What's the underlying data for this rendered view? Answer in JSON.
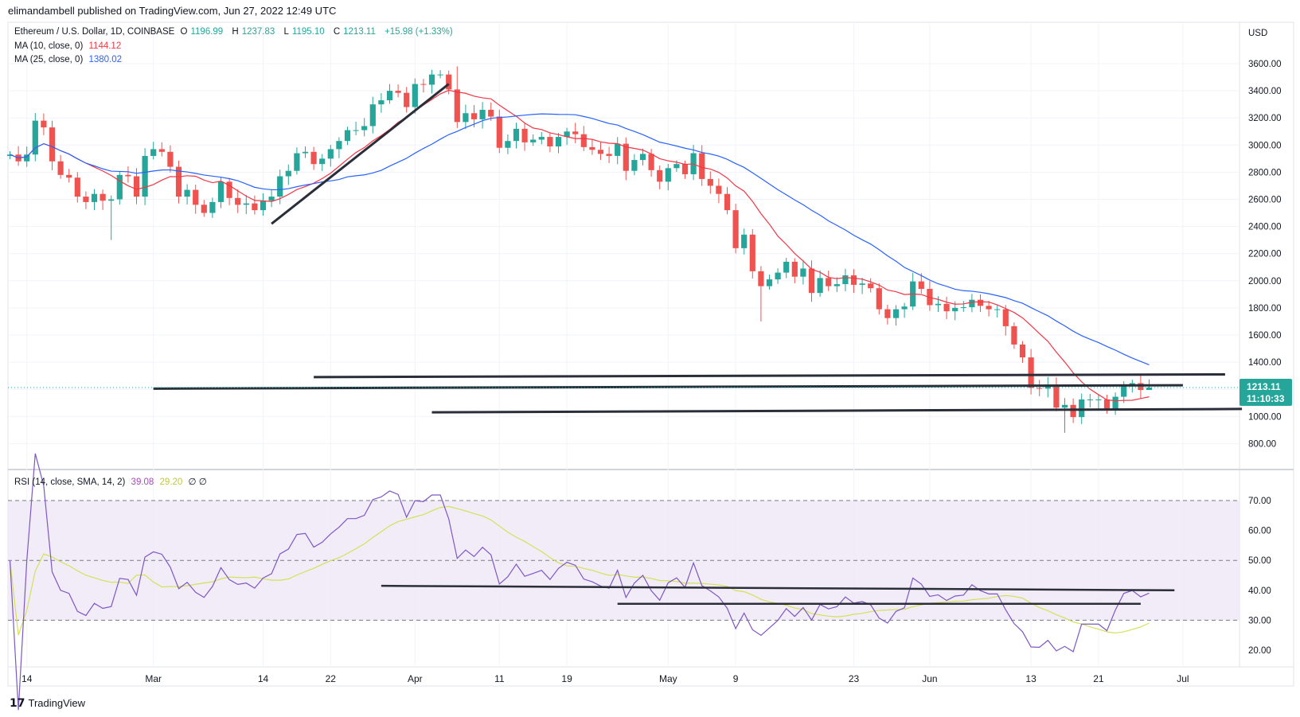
{
  "publisher_line": "elimandambell published on TradingView.com, Jun 27, 2022 12:49 UTC",
  "legend": {
    "symbol": "Ethereum / U.S. Dollar, 1D, COINBASE",
    "o_label": "O",
    "o": "1196.99",
    "h_label": "H",
    "h": "1237.83",
    "l_label": "L",
    "l": "1195.10",
    "c_label": "C",
    "c": "1213.11",
    "change": "+15.98 (+1.33%)",
    "ma10_label": "MA (10, close, 0)",
    "ma10_value": "1144.12",
    "ma25_label": "MA (25, close, 0)",
    "ma25_value": "1380.02",
    "rsi_label": "RSI (14, close, SMA, 14, 2)",
    "rsi_value": "39.08",
    "rsi_sma_value": "29.20",
    "rsi_extra": "∅ ∅"
  },
  "price_axis": {
    "currency": "USD",
    "ticks": [
      "3600.00",
      "3400.00",
      "3200.00",
      "3000.00",
      "2800.00",
      "2600.00",
      "2400.00",
      "2200.00",
      "2000.00",
      "1800.00",
      "1600.00",
      "1400.00",
      "1000.00",
      "800.00"
    ],
    "last_price": "1213.11",
    "countdown": "11:10:33"
  },
  "rsi_axis": {
    "ticks": [
      "70.00",
      "60.00",
      "50.00",
      "40.00",
      "30.00",
      "20.00"
    ]
  },
  "footer": {
    "brand": "TradingView"
  },
  "colors": {
    "up": "#26a69a",
    "down": "#ef5350",
    "ma10": "#f23645",
    "ma25": "#2962ff",
    "rsi": "#7e57c2",
    "rsi_sma": "#d4e157",
    "band": "#ede7f6"
  },
  "chart_data": {
    "type": "candlestick",
    "title": "Ethereum / U.S. Dollar, 1D, COINBASE",
    "start_date": "2022-02-12",
    "first_open": 2920,
    "closes": [
      2930,
      2880,
      2930,
      3180,
      3130,
      2880,
      2780,
      2760,
      2620,
      2580,
      2640,
      2590,
      2600,
      2780,
      2770,
      2620,
      2920,
      2970,
      2950,
      2840,
      2620,
      2670,
      2560,
      2500,
      2580,
      2730,
      2610,
      2560,
      2570,
      2520,
      2590,
      2620,
      2770,
      2810,
      2940,
      2950,
      2860,
      2900,
      2970,
      3030,
      3110,
      3110,
      3140,
      3300,
      3330,
      3400,
      3385,
      3280,
      3450,
      3445,
      3520,
      3520,
      3410,
      3170,
      3235,
      3190,
      3260,
      3210,
      2980,
      3030,
      3120,
      3020,
      3040,
      3060,
      2990,
      3060,
      3100,
      3080,
      2985,
      2965,
      2935,
      2920,
      3010,
      2810,
      2890,
      2935,
      2815,
      2730,
      2830,
      2860,
      2785,
      2940,
      2750,
      2700,
      2640,
      2520,
      2240,
      2340,
      2070,
      1960,
      2010,
      2060,
      2140,
      2030,
      2090,
      1910,
      2020,
      1960,
      1975,
      2040,
      1970,
      1980,
      1945,
      1790,
      1725,
      1790,
      1810,
      1995,
      1940,
      1820,
      1830,
      1775,
      1800,
      1805,
      1860,
      1815,
      1790,
      1790,
      1665,
      1530,
      1435,
      1210,
      1205,
      1235,
      1065,
      1085,
      995,
      1125,
      1125,
      1125,
      1050,
      1145,
      1230,
      1245,
      1195,
      1213.11
    ],
    "wick_overrides": [
      {
        "index": 12,
        "low": 2300
      },
      {
        "index": 53,
        "high": 3580
      },
      {
        "index": 89,
        "low": 1700
      },
      {
        "index": 125,
        "low": 880
      },
      {
        "index": 136,
        "high": 1237.83
      }
    ],
    "x_ticks": [
      {
        "label": "14",
        "index": 2
      },
      {
        "label": "Mar",
        "index": 17
      },
      {
        "label": "14",
        "index": 30
      },
      {
        "label": "22",
        "index": 38
      },
      {
        "label": "Apr",
        "index": 48
      },
      {
        "label": "11",
        "index": 58
      },
      {
        "label": "19",
        "index": 66
      },
      {
        "label": "May",
        "index": 78
      },
      {
        "label": "9",
        "index": 86
      },
      {
        "label": "23",
        "index": 100
      },
      {
        "label": "Jun",
        "index": 109
      },
      {
        "label": "13",
        "index": 121
      },
      {
        "label": "21",
        "index": 129
      },
      {
        "label": "Jul",
        "index": 139
      }
    ],
    "price_range": [
      700,
      3700
    ],
    "rsi_range": [
      15,
      75
    ],
    "rsi_levels": [
      70,
      50,
      30
    ],
    "indicators": [
      "MA 10",
      "MA 25",
      "RSI 14 with SMA 14"
    ],
    "trendlines_price": [
      {
        "from": {
          "index": 31,
          "price": 2420
        },
        "to": {
          "index": 52,
          "price": 3450
        }
      },
      {
        "from": {
          "index": 36,
          "price": 1290
        },
        "to": {
          "index": 144,
          "price": 1310
        }
      },
      {
        "from": {
          "index": 17,
          "price": 1205
        },
        "to": {
          "index": 139,
          "price": 1230
        }
      },
      {
        "from": {
          "index": 50,
          "price": 1030
        },
        "to": {
          "index": 146,
          "price": 1055
        }
      }
    ],
    "trendlines_rsi": [
      {
        "from": {
          "index": 44,
          "rsi": 41.5
        },
        "to": {
          "index": 138,
          "rsi": 40
        }
      },
      {
        "from": {
          "index": 72,
          "rsi": 35.5
        },
        "to": {
          "index": 134,
          "rsi": 35.5
        }
      }
    ]
  }
}
